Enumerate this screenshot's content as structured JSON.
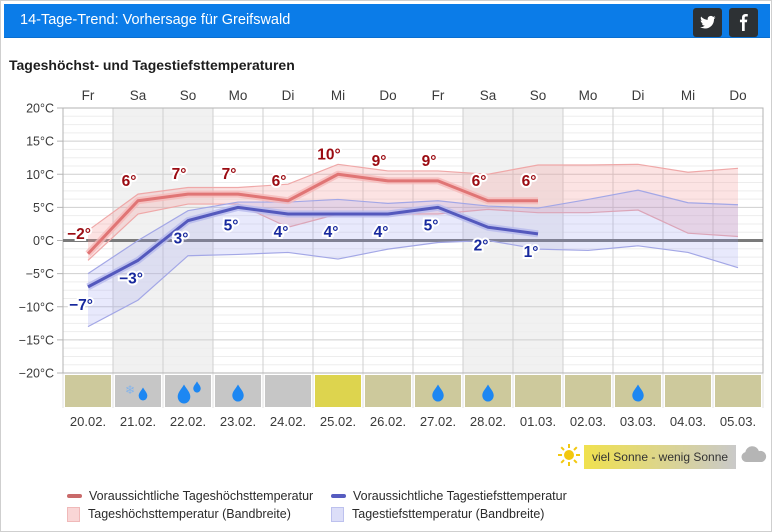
{
  "header": {
    "title": "14-Tage-Trend: Vorhersage für Greifswald",
    "social": [
      {
        "name": "twitter"
      },
      {
        "name": "facebook"
      }
    ],
    "bar_color": "#0b7ce8",
    "social_bg": "#2d3134"
  },
  "section_title": "Tageshöchst- und Tagestiefsttemperaturen",
  "sun_legend": {
    "label": "viel Sonne - wenig Sonne",
    "left_color": "#f0e14e",
    "right_color": "#c9c9c9"
  },
  "legend": {
    "items": [
      {
        "label": "Voraussichtliche Tageshöchsttemperatur",
        "swatch": "line",
        "color": "#c96a6a"
      },
      {
        "label": "Voraussichtliche Tagestiefsttemperatur",
        "swatch": "line",
        "color": "#565cc0"
      },
      {
        "label": "Tageshöchsttemperatur (Bandbreite)",
        "swatch": "band",
        "color": "#f9d6d6",
        "border": "#f0b9b9"
      },
      {
        "label": "Tagestiefsttemperatur (Bandbreite)",
        "swatch": "band",
        "color": "#dcdef8",
        "border": "#bdc1ee"
      }
    ]
  },
  "chart_data": {
    "type": "line",
    "title": "Tageshöchst- und Tagestiefsttemperaturen",
    "x_weekdays": [
      "Fr",
      "Sa",
      "So",
      "Mo",
      "Di",
      "Mi",
      "Do",
      "Fr",
      "Sa",
      "So",
      "Mo",
      "Di",
      "Mi",
      "Do"
    ],
    "x_dates": [
      "20.02.",
      "21.02.",
      "22.02.",
      "23.02.",
      "24.02.",
      "25.02.",
      "26.02.",
      "27.02.",
      "28.02.",
      "01.03.",
      "02.03.",
      "03.03.",
      "04.03.",
      "05.03."
    ],
    "weekend_columns": [
      1,
      2,
      8,
      9
    ],
    "ylim": [
      -20,
      20
    ],
    "y_ticks": [
      {
        "value": 20,
        "label": "20°C"
      },
      {
        "value": 15,
        "label": "15°C"
      },
      {
        "value": 10,
        "label": "10°C"
      },
      {
        "value": 5,
        "label": "5°C"
      },
      {
        "value": 0,
        "label": "0°C"
      },
      {
        "value": -5,
        "label": "−5°C"
      },
      {
        "value": -10,
        "label": "−10°C"
      },
      {
        "value": -15,
        "label": "−15°C"
      },
      {
        "value": -20,
        "label": "−20°C"
      }
    ],
    "series": [
      {
        "name": "Voraussichtliche Tageshöchsttemperatur",
        "type": "line",
        "color": "#e07575",
        "casing": "rgba(246,183,183,0.75)",
        "values": [
          -2,
          6,
          7,
          7,
          6,
          10,
          9,
          9,
          6,
          6
        ]
      },
      {
        "name": "Voraussichtliche Tagestiefsttemperatur",
        "type": "line",
        "color": "#5459bd",
        "casing": "rgba(182,185,236,0.8)",
        "values": [
          -7,
          -3,
          3,
          5,
          4,
          4,
          4,
          5,
          2,
          1
        ]
      },
      {
        "name": "Tageshöchsttemperatur (Bandbreite)",
        "type": "band",
        "fill": "rgba(244,150,150,0.27)",
        "edge": "#efa8a8",
        "upper": [
          1.5,
          7,
          8,
          8,
          8.5,
          11.5,
          10.5,
          10.5,
          10,
          11.4,
          11.4,
          11.5,
          10.3,
          10.9
        ],
        "lower": [
          -3,
          4,
          5.5,
          5.5,
          2,
          4,
          4,
          4,
          4.7,
          4.2,
          4.2,
          4.6,
          1.1,
          0.6
        ]
      },
      {
        "name": "Tagestiefsttemperatur (Bandbreite)",
        "type": "band",
        "fill": "rgba(150,153,240,0.22)",
        "edge": "#a3a7e6",
        "upper": [
          -5,
          0,
          4.5,
          5.8,
          5.8,
          6.2,
          5.6,
          6,
          5.2,
          4.9,
          6.2,
          7.6,
          5.7,
          5.4
        ],
        "lower": [
          -13,
          -9,
          -2.3,
          -2.1,
          -1.8,
          -2.8,
          -1.3,
          -0.3,
          0,
          -1.3,
          -1.5,
          -0.8,
          -1.8,
          -4.1
        ]
      }
    ],
    "label_colors": {
      "max": "#9b0b12",
      "min": "#17289d"
    },
    "icons": [
      {
        "date": "20.02.",
        "sun": "medium",
        "precip": null
      },
      {
        "date": "21.02.",
        "sun": "low",
        "precip": "sleet"
      },
      {
        "date": "22.02.",
        "sun": "low",
        "precip": "rain2"
      },
      {
        "date": "23.02.",
        "sun": "low",
        "precip": "rain1"
      },
      {
        "date": "24.02.",
        "sun": "low",
        "precip": null
      },
      {
        "date": "25.02.",
        "sun": "high",
        "precip": null
      },
      {
        "date": "26.02.",
        "sun": "medium",
        "precip": null
      },
      {
        "date": "27.02.",
        "sun": "medium",
        "precip": "rain1"
      },
      {
        "date": "28.02.",
        "sun": "medium",
        "precip": "rain1"
      },
      {
        "date": "01.03.",
        "sun": "medium",
        "precip": null
      },
      {
        "date": "02.03.",
        "sun": "medium",
        "precip": null
      },
      {
        "date": "03.03.",
        "sun": "medium",
        "precip": "rain1"
      },
      {
        "date": "04.03.",
        "sun": "medium",
        "precip": null
      },
      {
        "date": "05.03.",
        "sun": "medium",
        "precip": null
      }
    ],
    "sun_colors": {
      "high": "#ddd44e",
      "medium": "#cdc99c",
      "low": "#c6c6c6"
    },
    "precip_color": "#1d87f2",
    "snow_color": "#85b4ea",
    "legend_position": "bottom",
    "grid": true
  }
}
